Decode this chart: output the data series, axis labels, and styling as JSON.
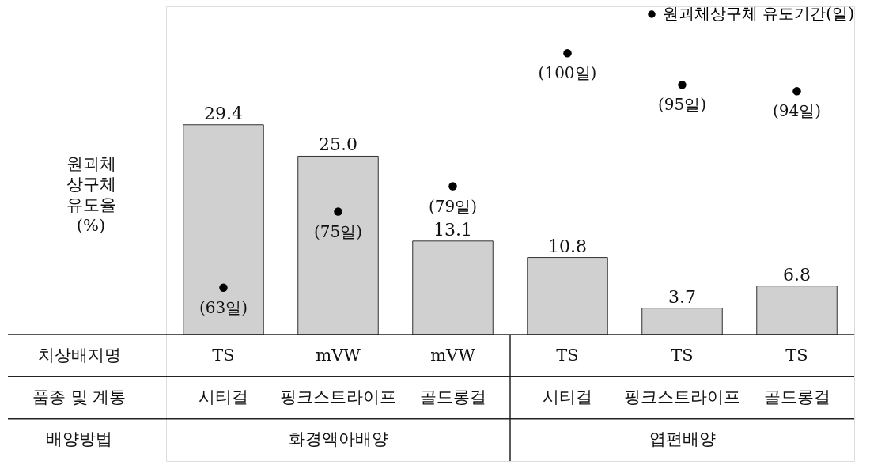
{
  "chart_data": {
    "type": "bar",
    "ylabel": "원괴체 상구체 유도율 (%)",
    "categories": [
      "TS",
      "mVW",
      "mVW",
      "TS",
      "TS",
      "TS"
    ],
    "ylim": [
      0,
      46
    ],
    "tick_labels": false,
    "grid": false,
    "legend": "top right",
    "series": [
      {
        "color": "#d0d0d0",
        "values": [
          29.4,
          25.0,
          13.1,
          10.8,
          3.7,
          6.8
        ],
        "value_labels": [
          "29.4",
          "25.0",
          "13.1",
          "10.8",
          "3.7",
          "6.8"
        ]
      },
      {
        "name": "원괴체상구체 유도기간(일)",
        "type": "scatter",
        "axis": "y2",
        "color": "#000000",
        "values": [
          63,
          75,
          79,
          100,
          95,
          94
        ],
        "value_labels": [
          "(63일)",
          "(75일)",
          "(79일)",
          "(100일)",
          "(95일)",
          "(94일)"
        ]
      }
    ],
    "annotations": [
      "치상배지명",
      "품종 및 계통",
      "배양방법",
      "시티걸",
      "핑크스트라이프",
      "골드롱걸",
      "시티걸",
      "핑크스트라이프",
      "골드롱걸",
      "화경액아배양",
      "엽편배양"
    ]
  }
}
